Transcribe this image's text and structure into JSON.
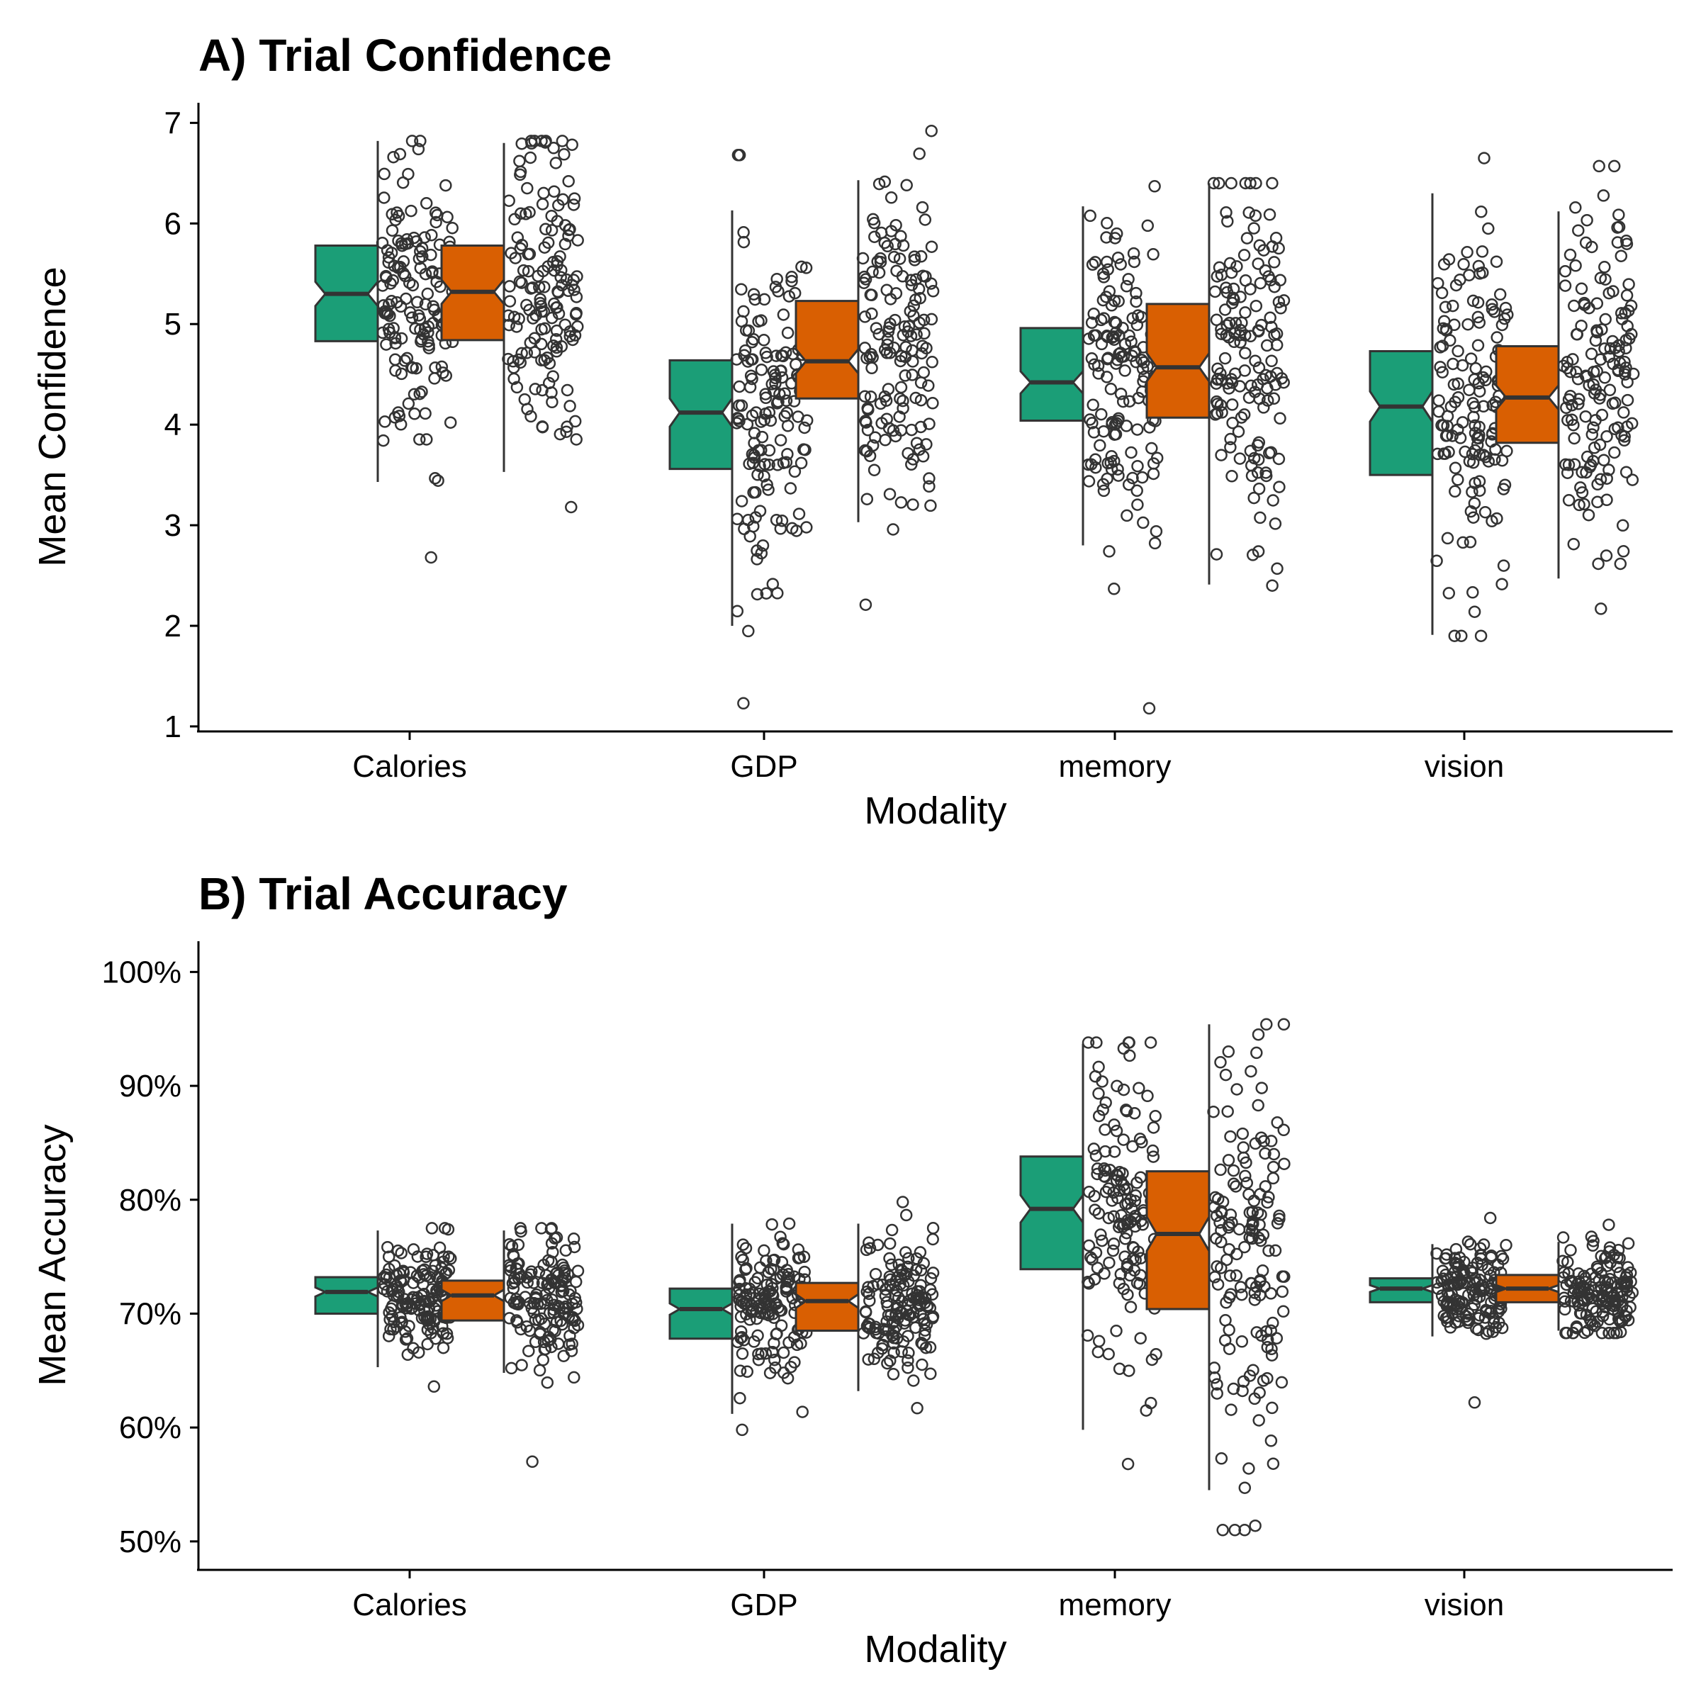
{
  "colors": {
    "group1": "#1B9E77",
    "group2": "#D95F02",
    "outline": "#333333",
    "points": "#333333"
  },
  "chart_data": [
    {
      "type": "box",
      "title": "A) Trial Confidence",
      "xlabel": "Modality",
      "ylabel": "Mean Confidence",
      "ylim": [
        0.95,
        7.2
      ],
      "yticks": [
        1,
        2,
        3,
        4,
        5,
        6,
        7
      ],
      "ytick_labels": [
        "1",
        "2",
        "3",
        "4",
        "5",
        "6",
        "7"
      ],
      "categories": [
        "Calories",
        "GDP",
        "memory",
        "vision"
      ],
      "notched": true,
      "jitter_points": true,
      "grid": false,
      "legend": "none",
      "series": [
        {
          "boxes": [
            {
              "q1": 4.83,
              "median": 5.3,
              "q3": 5.78,
              "notch_low": 5.18,
              "notch_high": 5.42,
              "whisker_low": 3.43,
              "whisker_high": 6.82,
              "pt_mean": 5.25,
              "pt_sd": 0.72,
              "pt_min": 2.68,
              "pt_max": 6.82
            },
            {
              "q1": 3.56,
              "median": 4.12,
              "q3": 4.64,
              "notch_low": 3.98,
              "notch_high": 4.26,
              "whisker_low": 2.0,
              "whisker_high": 6.13,
              "pt_mean": 4.12,
              "pt_sd": 0.85,
              "pt_min": 1.23,
              "pt_max": 6.68
            },
            {
              "q1": 4.04,
              "median": 4.42,
              "q3": 4.96,
              "notch_low": 4.31,
              "notch_high": 4.53,
              "whisker_low": 2.8,
              "whisker_high": 6.17,
              "pt_mean": 4.5,
              "pt_sd": 0.75,
              "pt_min": 1.18,
              "pt_max": 6.37
            },
            {
              "q1": 3.5,
              "median": 4.18,
              "q3": 4.73,
              "notch_low": 4.03,
              "notch_high": 4.33,
              "whisker_low": 1.91,
              "whisker_high": 6.3,
              "pt_mean": 4.12,
              "pt_sd": 0.9,
              "pt_min": 1.9,
              "pt_max": 6.65
            }
          ]
        },
        {
          "boxes": [
            {
              "q1": 4.84,
              "median": 5.32,
              "q3": 5.78,
              "notch_low": 5.2,
              "notch_high": 5.44,
              "whisker_low": 3.53,
              "whisker_high": 6.8,
              "pt_mean": 5.3,
              "pt_sd": 0.7,
              "pt_min": 3.18,
              "pt_max": 6.82
            },
            {
              "q1": 4.26,
              "median": 4.63,
              "q3": 5.23,
              "notch_low": 4.51,
              "notch_high": 4.75,
              "whisker_low": 3.03,
              "whisker_high": 6.43,
              "pt_mean": 4.75,
              "pt_sd": 0.8,
              "pt_min": 2.21,
              "pt_max": 6.92
            },
            {
              "q1": 4.07,
              "median": 4.57,
              "q3": 5.2,
              "notch_low": 4.43,
              "notch_high": 4.71,
              "whisker_low": 2.41,
              "whisker_high": 6.4,
              "pt_mean": 4.6,
              "pt_sd": 0.85,
              "pt_min": 2.4,
              "pt_max": 6.4
            },
            {
              "q1": 3.82,
              "median": 4.27,
              "q3": 4.78,
              "notch_low": 4.15,
              "notch_high": 4.39,
              "whisker_low": 2.47,
              "whisker_high": 6.12,
              "pt_mean": 4.35,
              "pt_sd": 0.8,
              "pt_min": 2.17,
              "pt_max": 6.57
            }
          ]
        }
      ]
    },
    {
      "type": "box",
      "title": "B) Trial Accuracy",
      "xlabel": "Modality",
      "ylabel": "Mean Accuracy",
      "ylim": [
        0.475,
        1.027
      ],
      "yticks": [
        0.5,
        0.6,
        0.7,
        0.8,
        0.9,
        1.0
      ],
      "ytick_labels": [
        "50%",
        "60%",
        "70%",
        "80%",
        "90%",
        "100%"
      ],
      "categories": [
        "Calories",
        "GDP",
        "memory",
        "vision"
      ],
      "notched": true,
      "jitter_points": true,
      "grid": false,
      "legend": "none",
      "series": [
        {
          "boxes": [
            {
              "q1": 0.7,
              "median": 0.719,
              "q3": 0.732,
              "notch_low": 0.715,
              "notch_high": 0.723,
              "whisker_low": 0.653,
              "whisker_high": 0.773,
              "pt_mean": 0.718,
              "pt_sd": 0.022,
              "pt_min": 0.636,
              "pt_max": 0.775
            },
            {
              "q1": 0.678,
              "median": 0.704,
              "q3": 0.722,
              "notch_low": 0.699,
              "notch_high": 0.709,
              "whisker_low": 0.612,
              "whisker_high": 0.779,
              "pt_mean": 0.703,
              "pt_sd": 0.03,
              "pt_min": 0.598,
              "pt_max": 0.779
            },
            {
              "q1": 0.739,
              "median": 0.792,
              "q3": 0.838,
              "notch_low": 0.78,
              "notch_high": 0.804,
              "whisker_low": 0.598,
              "whisker_high": 0.937,
              "pt_mean": 0.79,
              "pt_sd": 0.07,
              "pt_min": 0.568,
              "pt_max": 0.938
            },
            {
              "q1": 0.71,
              "median": 0.722,
              "q3": 0.731,
              "notch_low": 0.719,
              "notch_high": 0.725,
              "whisker_low": 0.68,
              "whisker_high": 0.761,
              "pt_mean": 0.721,
              "pt_sd": 0.02,
              "pt_min": 0.622,
              "pt_max": 0.784
            }
          ]
        },
        {
          "boxes": [
            {
              "q1": 0.694,
              "median": 0.716,
              "q3": 0.729,
              "notch_low": 0.711,
              "notch_high": 0.721,
              "whisker_low": 0.648,
              "whisker_high": 0.773,
              "pt_mean": 0.713,
              "pt_sd": 0.03,
              "pt_min": 0.57,
              "pt_max": 0.775
            },
            {
              "q1": 0.685,
              "median": 0.711,
              "q3": 0.727,
              "notch_low": 0.705,
              "notch_high": 0.717,
              "whisker_low": 0.632,
              "whisker_high": 0.779,
              "pt_mean": 0.71,
              "pt_sd": 0.03,
              "pt_min": 0.617,
              "pt_max": 0.798
            },
            {
              "q1": 0.704,
              "median": 0.77,
              "q3": 0.825,
              "notch_low": 0.755,
              "notch_high": 0.785,
              "whisker_low": 0.545,
              "whisker_high": 0.954,
              "pt_mean": 0.76,
              "pt_sd": 0.09,
              "pt_min": 0.51,
              "pt_max": 0.954
            },
            {
              "q1": 0.71,
              "median": 0.722,
              "q3": 0.734,
              "notch_low": 0.719,
              "notch_high": 0.725,
              "whisker_low": 0.685,
              "whisker_high": 0.763,
              "pt_mean": 0.72,
              "pt_sd": 0.02,
              "pt_min": 0.683,
              "pt_max": 0.778
            }
          ]
        }
      ]
    }
  ]
}
